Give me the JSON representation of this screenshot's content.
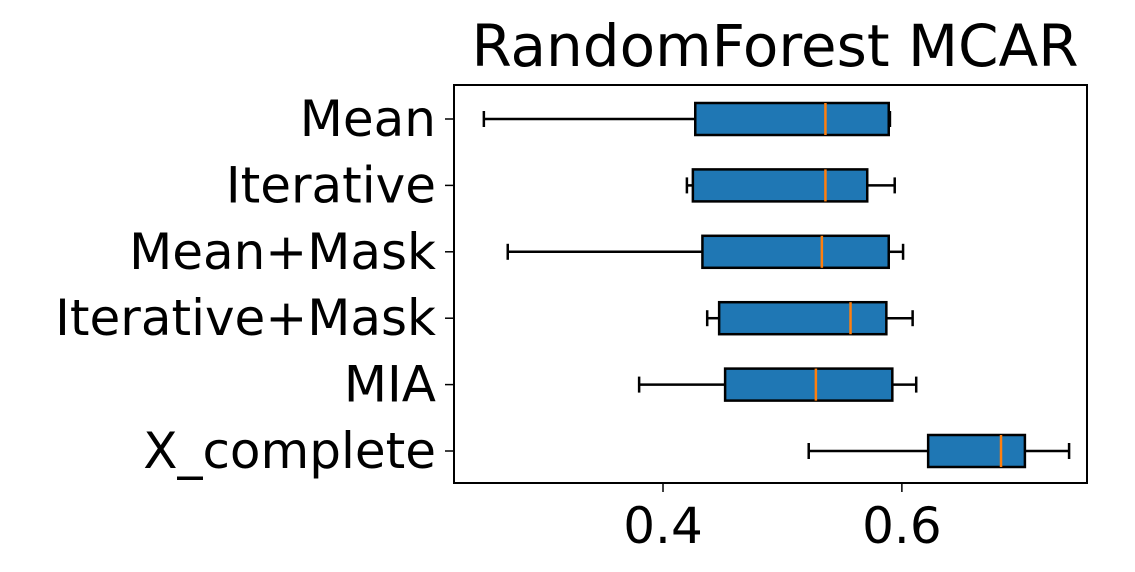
{
  "chart_data": {
    "type": "boxplot",
    "orientation": "horizontal",
    "title": "RandomForest MCAR",
    "xlabel": "",
    "ylabel": "",
    "xlim": [
      0.225,
      0.755
    ],
    "xticks": [
      0.4,
      0.6
    ],
    "xtick_labels": [
      "0.4",
      "0.6"
    ],
    "grid": false,
    "categories": [
      "Mean",
      "Iterative",
      "Mean+Mask",
      "Iterative+Mask",
      "MIA",
      "X_complete"
    ],
    "boxes": [
      {
        "label": "Mean",
        "whisker_low": 0.25,
        "q1": 0.427,
        "median": 0.536,
        "q3": 0.589,
        "whisker_high": 0.59
      },
      {
        "label": "Iterative",
        "whisker_low": 0.42,
        "q1": 0.425,
        "median": 0.536,
        "q3": 0.571,
        "whisker_high": 0.594
      },
      {
        "label": "Mean+Mask",
        "whisker_low": 0.27,
        "q1": 0.433,
        "median": 0.533,
        "q3": 0.589,
        "whisker_high": 0.601
      },
      {
        "label": "Iterative+Mask",
        "whisker_low": 0.437,
        "q1": 0.447,
        "median": 0.557,
        "q3": 0.587,
        "whisker_high": 0.609
      },
      {
        "label": "MIA",
        "whisker_low": 0.38,
        "q1": 0.452,
        "median": 0.528,
        "q3": 0.592,
        "whisker_high": 0.612
      },
      {
        "label": "X_complete",
        "whisker_low": 0.522,
        "q1": 0.622,
        "median": 0.683,
        "q3": 0.703,
        "whisker_high": 0.74
      }
    ],
    "colors": {
      "box_fill": "#1f77b4",
      "box_edge": "#000000",
      "median": "#ff7f0e",
      "whisker": "#000000",
      "axes": "#000000",
      "text": "#000000"
    }
  }
}
